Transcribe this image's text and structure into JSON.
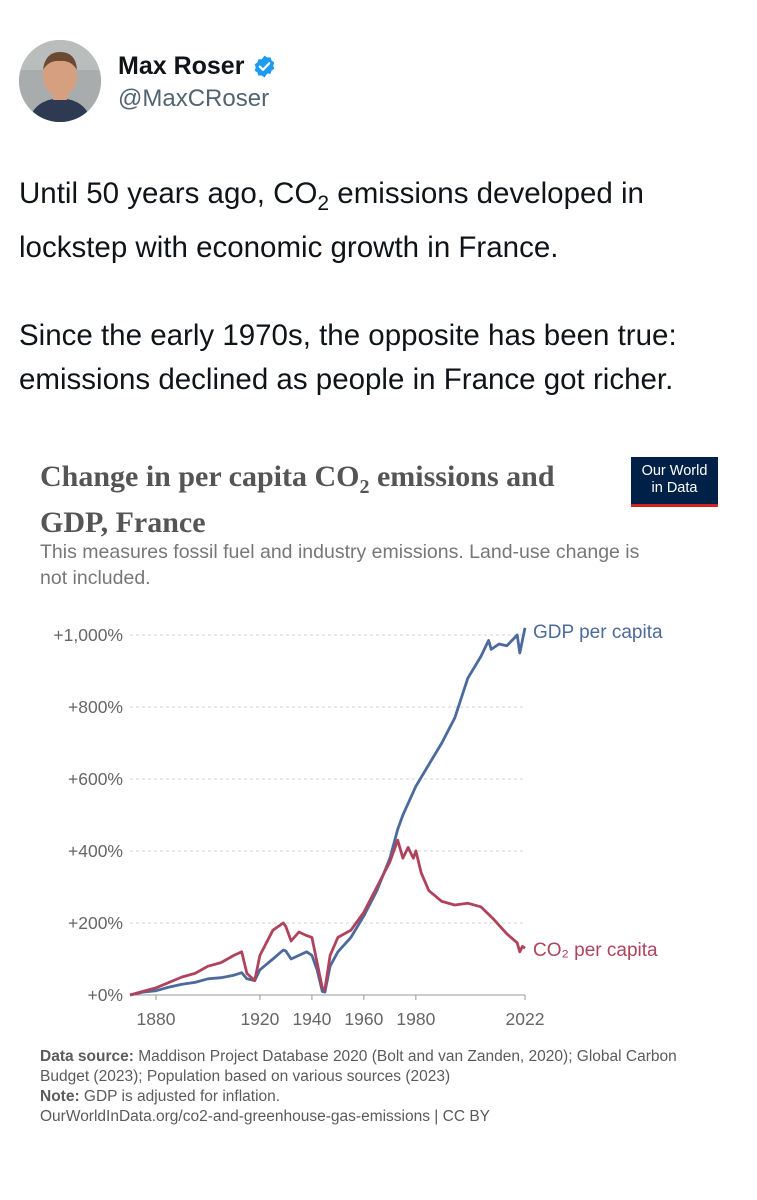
{
  "author": {
    "name": "Max Roser",
    "handle": "@MaxCRoser"
  },
  "tweet": {
    "line1_pre": "Until 50 years ago, CO",
    "line1_sub": "2",
    "line1_post": " emissions developed in lockstep with economic growth in France.",
    "para2": "Since the early 1970s, the opposite has been true: emissions declined as people in France got richer."
  },
  "chart": {
    "title_pre": "Change in per capita CO",
    "title_sub": "2",
    "title_post": " emissions and GDP, France",
    "subtitle": "This measures fossil fuel and industry emissions. Land-use change is not included.",
    "logo_line1": "Our World",
    "logo_line2": "in Data",
    "source_label": "Data source:",
    "source_text": "Maddison Project Database 2020 (Bolt and van Zanden, 2020); Global Carbon Budget (2023); Population based on various sources (2023)",
    "note_label": "Note:",
    "note_text": "GDP is adjusted for inflation.",
    "url": "OurWorldInData.org/co2-and-greenhouse-gas-emissions | CC BY"
  },
  "chart_data": {
    "type": "line",
    "ylabels": [
      "+0%",
      "+200%",
      "+400%",
      "+600%",
      "+800%",
      "+1,000%"
    ],
    "yticks": [
      0,
      200,
      400,
      600,
      800,
      1000
    ],
    "xticks": [
      1880,
      1920,
      1940,
      1960,
      1980,
      2022
    ],
    "xlim": [
      1870,
      2022
    ],
    "ylim": [
      0,
      1000
    ],
    "grid": true,
    "series": [
      {
        "name": "GDP per capita",
        "color": "#4c6a9c",
        "x": [
          1870,
          1875,
          1880,
          1885,
          1890,
          1895,
          1900,
          1905,
          1910,
          1913,
          1915,
          1918,
          1920,
          1925,
          1929,
          1930,
          1932,
          1935,
          1938,
          1940,
          1942,
          1944,
          1945,
          1947,
          1950,
          1955,
          1960,
          1965,
          1970,
          1973,
          1975,
          1980,
          1985,
          1990,
          1995,
          2000,
          2005,
          2008,
          2009,
          2012,
          2015,
          2019,
          2020,
          2021,
          2022
        ],
        "y": [
          0,
          8,
          12,
          22,
          30,
          35,
          45,
          48,
          55,
          62,
          45,
          40,
          70,
          100,
          125,
          122,
          100,
          110,
          120,
          110,
          70,
          10,
          8,
          80,
          120,
          160,
          220,
          290,
          380,
          460,
          500,
          580,
          640,
          700,
          770,
          880,
          940,
          985,
          960,
          975,
          970,
          1000,
          950,
          985,
          1020
        ]
      },
      {
        "name": "CO₂ per capita",
        "color": "#b0435c",
        "x": [
          1870,
          1875,
          1880,
          1885,
          1890,
          1895,
          1900,
          1905,
          1910,
          1913,
          1915,
          1918,
          1920,
          1925,
          1929,
          1930,
          1932,
          1935,
          1938,
          1940,
          1942,
          1944,
          1945,
          1947,
          1950,
          1955,
          1960,
          1965,
          1970,
          1973,
          1975,
          1977,
          1979,
          1980,
          1982,
          1985,
          1990,
          1995,
          2000,
          2005,
          2010,
          2015,
          2019,
          2020,
          2021,
          2022
        ],
        "y": [
          0,
          10,
          20,
          35,
          50,
          60,
          80,
          90,
          110,
          120,
          60,
          40,
          110,
          180,
          200,
          190,
          150,
          175,
          165,
          160,
          90,
          20,
          15,
          110,
          160,
          180,
          230,
          300,
          370,
          430,
          380,
          410,
          380,
          400,
          340,
          290,
          260,
          250,
          255,
          245,
          210,
          170,
          145,
          120,
          135,
          130
        ]
      }
    ]
  },
  "colors": {
    "gdp": "#4c6a9c",
    "co2": "#b0435c",
    "verified": "#1d9bf0",
    "logo_bg": "#002147",
    "logo_accent": "#ce261e"
  }
}
